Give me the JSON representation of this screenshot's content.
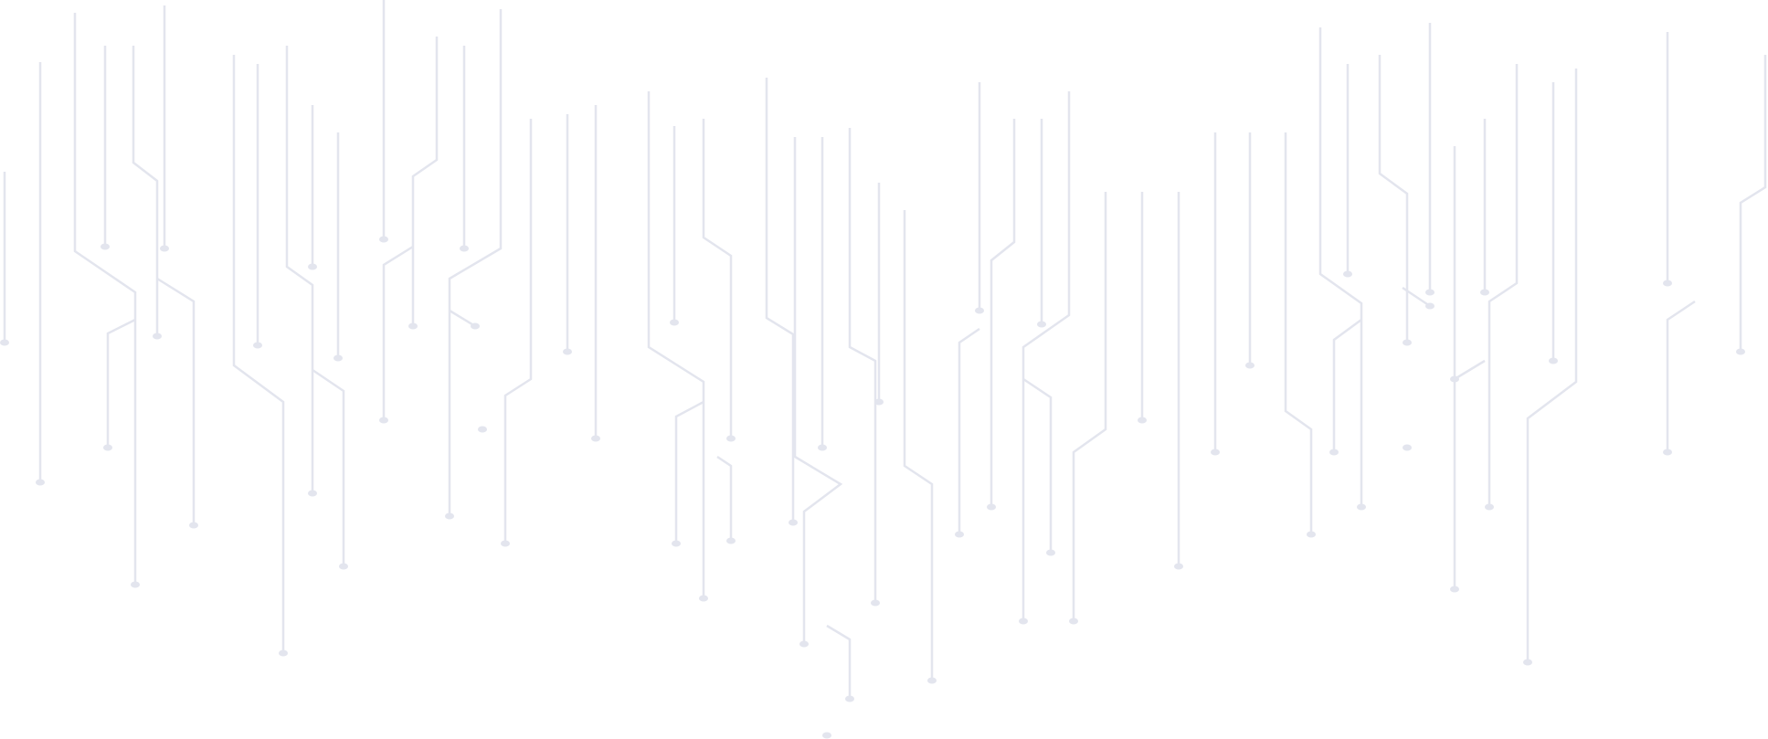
{
  "background_color": "#ffffff",
  "line_color": "#f1f2f7",
  "pattern": "circuit-lines"
}
